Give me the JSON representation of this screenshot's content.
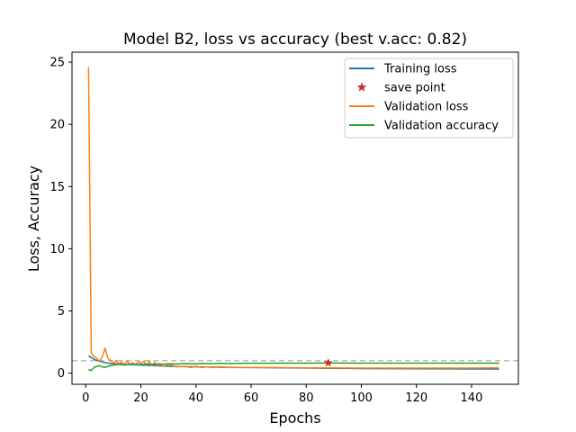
{
  "chart_data": {
    "type": "line",
    "title": "Model B2, loss vs accuracy (best v.acc: 0.82)",
    "xlabel": "Epochs",
    "ylabel": "Loss, Accuracy",
    "xlim": [
      -5,
      157
    ],
    "ylim": [
      -0.9,
      25.8
    ],
    "xticks": [
      0,
      20,
      40,
      60,
      80,
      100,
      120,
      140
    ],
    "yticks": [
      0,
      5,
      10,
      15,
      20,
      25
    ],
    "grid": false,
    "legend_position": "top-right",
    "reference_line": {
      "y": 1.0,
      "style": "dashed",
      "color": "#bfbfbf"
    },
    "series": [
      {
        "name": "Training loss",
        "color": "#1f77b4",
        "x": [
          1,
          3,
          5,
          8,
          10,
          15,
          20,
          25,
          30,
          40,
          50,
          60,
          80,
          100,
          120,
          140,
          150
        ],
        "y": [
          1.4,
          1.1,
          0.95,
          0.8,
          0.75,
          0.7,
          0.65,
          0.6,
          0.55,
          0.5,
          0.47,
          0.45,
          0.4,
          0.37,
          0.35,
          0.33,
          0.33
        ]
      },
      {
        "name": "Validation loss",
        "color": "#ff7f0e",
        "x": [
          1,
          2,
          3,
          4,
          5,
          6,
          7,
          8,
          9,
          10,
          11,
          12,
          13,
          14,
          15,
          16,
          17,
          18,
          19,
          20,
          21,
          22,
          23,
          24,
          25,
          26,
          27,
          28,
          30,
          33,
          36,
          38,
          40,
          42,
          44,
          46,
          48,
          50,
          52,
          55,
          60,
          70,
          80,
          90,
          100,
          110,
          120,
          130,
          140,
          150
        ],
        "y": [
          24.6,
          1.6,
          1.3,
          1.2,
          0.95,
          1.3,
          2.0,
          1.2,
          1.0,
          0.8,
          1.0,
          0.75,
          0.9,
          0.7,
          0.95,
          0.7,
          0.85,
          0.7,
          0.9,
          0.8,
          0.95,
          0.65,
          1.0,
          0.6,
          0.85,
          0.6,
          0.75,
          0.55,
          0.7,
          0.5,
          0.55,
          0.45,
          0.55,
          0.45,
          0.5,
          0.45,
          0.5,
          0.5,
          0.45,
          0.45,
          0.45,
          0.45,
          0.42,
          0.42,
          0.4,
          0.4,
          0.4,
          0.4,
          0.4,
          0.42
        ]
      },
      {
        "name": "Validation accuracy",
        "color": "#2ca02c",
        "x": [
          1,
          2,
          3,
          4,
          5,
          6,
          7,
          8,
          9,
          10,
          12,
          14,
          16,
          18,
          20,
          22,
          24,
          26,
          28,
          30,
          33,
          36,
          39,
          42,
          45,
          48,
          50,
          52,
          55,
          60,
          70,
          80,
          88,
          100,
          120,
          140,
          150
        ],
        "y": [
          0.3,
          0.2,
          0.45,
          0.55,
          0.6,
          0.5,
          0.45,
          0.55,
          0.6,
          0.65,
          0.7,
          0.65,
          0.72,
          0.68,
          0.7,
          0.73,
          0.7,
          0.75,
          0.72,
          0.75,
          0.74,
          0.76,
          0.75,
          0.77,
          0.76,
          0.78,
          0.78,
          0.77,
          0.78,
          0.79,
          0.8,
          0.8,
          0.82,
          0.8,
          0.8,
          0.8,
          0.8
        ]
      }
    ],
    "markers": [
      {
        "name": "save point",
        "color": "#d62728",
        "symbol": "star",
        "x": 88,
        "y": 0.82
      }
    ],
    "legend": [
      {
        "label": "Training loss",
        "kind": "line",
        "color": "#1f77b4"
      },
      {
        "label": "save point",
        "kind": "star",
        "color": "#d62728"
      },
      {
        "label": "Validation loss",
        "kind": "line",
        "color": "#ff7f0e"
      },
      {
        "label": "Validation accuracy",
        "kind": "line",
        "color": "#2ca02c"
      }
    ]
  }
}
